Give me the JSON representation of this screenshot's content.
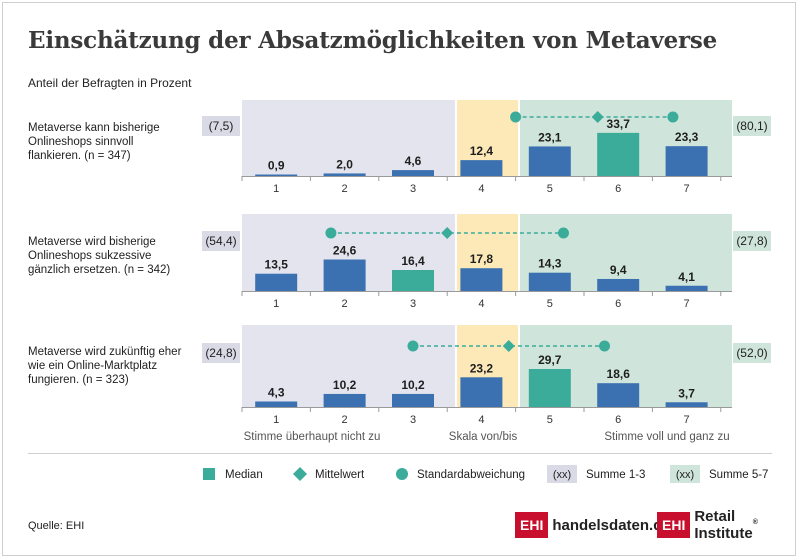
{
  "title": "Einschätzung der Absatzmöglichkeiten von Metaverse",
  "subtitle": "Anteil der Befragten in Prozent",
  "source": "Quelle: EHI",
  "colors": {
    "bar": "#3b71b0",
    "median": "#3bab9a",
    "mean": "#3bab9a",
    "zone_low": "#e4e4ef",
    "zone_mid": "#fde9b8",
    "zone_high": "#cfe5dc",
    "sum_box": "#d9dae6",
    "sum_box_high": "#cfe5dc"
  },
  "scale_labels": {
    "left": "Stimme überhaupt nicht zu",
    "center": "Skala von/bis",
    "right": "Stimme voll und ganz zu"
  },
  "legend": [
    {
      "name": "median",
      "label": "Median",
      "icon": "square"
    },
    {
      "name": "mean",
      "label": "Mittelwert",
      "icon": "diamond"
    },
    {
      "name": "std",
      "label": "Standardabweichung",
      "icon": "circle"
    },
    {
      "name": "sum-low",
      "label": "Summe 1-3",
      "icon_text": "(xx)"
    },
    {
      "name": "sum-high",
      "label": "Summe 5-7",
      "icon_text": "(xx)"
    }
  ],
  "logos": {
    "handelsdaten_box": "EHI",
    "handelsdaten_text": "handelsdaten.de",
    "retail_box": "EHI",
    "retail_text": "Retail Institute",
    "retail_mark": "®"
  },
  "chart_data": {
    "type": "bar",
    "categories": [
      "1",
      "2",
      "3",
      "4",
      "5",
      "6",
      "7"
    ],
    "title": "Einschätzung der Absatzmöglichkeiten von Metaverse",
    "ylabel": "Anteil der Befragten in Prozent",
    "grid": false,
    "legend_position": "bottom",
    "series": [
      {
        "label_lines": [
          "Metaverse kann bisherige",
          "Onlineshops sinnvoll",
          "flankieren. (n = 347)"
        ],
        "values": [
          0.9,
          2.0,
          4.6,
          12.4,
          23.1,
          33.7,
          23.3
        ],
        "value_labels": [
          "0,9",
          "2,0",
          "4,6",
          "12,4",
          "23,1",
          "33,7",
          "23,3"
        ],
        "median": "6",
        "sum_1_3": "(7,5)",
        "sum_5_7": "(80,1)",
        "mean": 5.7,
        "sd_low": 4.5,
        "sd_high": 6.8
      },
      {
        "label_lines": [
          "Metaverse wird bisherige",
          "Onlineshops sukzessive",
          "gänzlich ersetzen. (n = 342)"
        ],
        "values": [
          13.5,
          24.6,
          16.4,
          17.8,
          14.3,
          9.4,
          4.1
        ],
        "value_labels": [
          "13,5",
          "24,6",
          "16,4",
          "17,8",
          "14,3",
          "9,4",
          "4,1"
        ],
        "median": "3",
        "sum_1_3": "(54,4)",
        "sum_5_7": "(27,8)",
        "mean": 3.5,
        "sd_low": 1.8,
        "sd_high": 5.2
      },
      {
        "label_lines": [
          "Metaverse wird zukünftig eher",
          "wie ein Online-Marktplatz",
          "fungieren. (n = 323)"
        ],
        "values": [
          4.3,
          10.2,
          10.2,
          23.2,
          29.7,
          18.6,
          3.7
        ],
        "value_labels": [
          "4,3",
          "10,2",
          "10,2",
          "23,2",
          "29,7",
          "18,6",
          "3,7"
        ],
        "median": "5",
        "sum_1_3": "(24,8)",
        "sum_5_7": "(52,0)",
        "mean": 4.4,
        "sd_low": 3.0,
        "sd_high": 5.8
      }
    ]
  }
}
